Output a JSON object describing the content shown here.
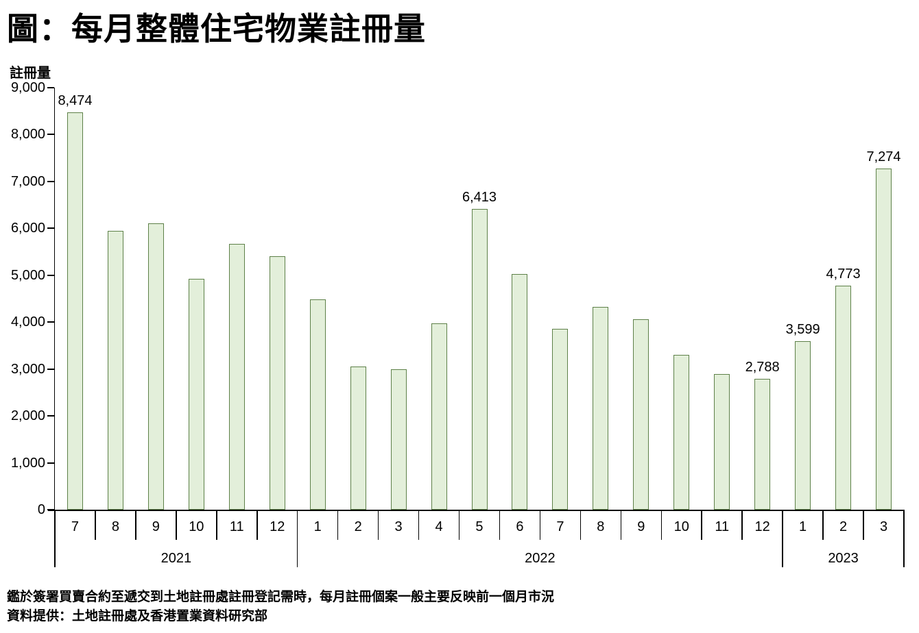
{
  "page": {
    "title": "圖：每月整體住宅物業註冊量",
    "notes": {
      "line1": "鑑於簽署買賣合約至遞交到土地註冊處註冊登記需時，每月註冊個案一般主要反映前一個月市況",
      "line2": "資料提供：土地註冊處及香港置業資料研究部"
    }
  },
  "chart_data": {
    "type": "bar",
    "title": "圖：每月整體住宅物業註冊量",
    "ylabel": "註冊量",
    "xlabel": "",
    "ylim": [
      0,
      9000
    ],
    "ytick_step": 1000,
    "grid": false,
    "legend": false,
    "bar_fill": "#e3efda",
    "bar_border": "#5d8048",
    "categories": [
      "7",
      "8",
      "9",
      "10",
      "11",
      "12",
      "1",
      "2",
      "3",
      "4",
      "5",
      "6",
      "7",
      "8",
      "9",
      "10",
      "11",
      "12",
      "1",
      "2",
      "3"
    ],
    "year_groups": [
      {
        "label": "2021",
        "span": 6
      },
      {
        "label": "2022",
        "span": 12
      },
      {
        "label": "2023",
        "span": 3
      }
    ],
    "values": [
      8474,
      5950,
      6100,
      4920,
      5670,
      5410,
      4490,
      3060,
      3000,
      3980,
      6413,
      5030,
      3850,
      4330,
      4060,
      3300,
      2890,
      2788,
      3599,
      4773,
      7274
    ],
    "data_labels": {
      "0": "8,474",
      "10": "6,413",
      "17": "2,788",
      "18": "3,599",
      "19": "4,773",
      "20": "7,274"
    }
  }
}
